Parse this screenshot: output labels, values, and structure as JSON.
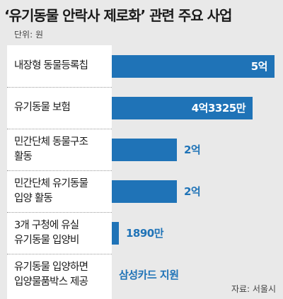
{
  "title": "‘유기동물 안락사 제로화’ 관련 주요 사업",
  "unit": "단위: 원",
  "source": "자료: 서울시",
  "chart_data": {
    "type": "bar",
    "orientation": "horizontal",
    "title": "‘유기동물 안락사 제로화’ 관련 주요 사업",
    "unit_label": "단위: 원",
    "categories": [
      "내장형 동물등록칩",
      "유기동물 보험",
      "민간단체 동물구조 활동",
      "민간단체 유기동물 입양 활동",
      "3개 구청에 유실 유기동물 입양비",
      "유기동물 입양하면 입양물품박스 제공"
    ],
    "category_lines": [
      [
        "내장형 동물등록칩"
      ],
      [
        "유기동물 보험"
      ],
      [
        "민간단체 동물구조",
        "활동"
      ],
      [
        "민간단체 유기동물",
        "입양 활동"
      ],
      [
        "3개 구청에 유실",
        "유기동물 입양비"
      ],
      [
        "유기동물 입양하면",
        "입양물품박스 제공"
      ]
    ],
    "values": [
      500000000,
      433250000,
      200000000,
      200000000,
      18900000,
      null
    ],
    "data_labels": [
      "5억",
      "4억3325만",
      "2억",
      "2억",
      "1890만",
      "삼성카드 지원"
    ],
    "label_inside": [
      true,
      true,
      false,
      false,
      false,
      false
    ],
    "bar_color": "#1f73b7",
    "grid": false,
    "legend": "none"
  }
}
